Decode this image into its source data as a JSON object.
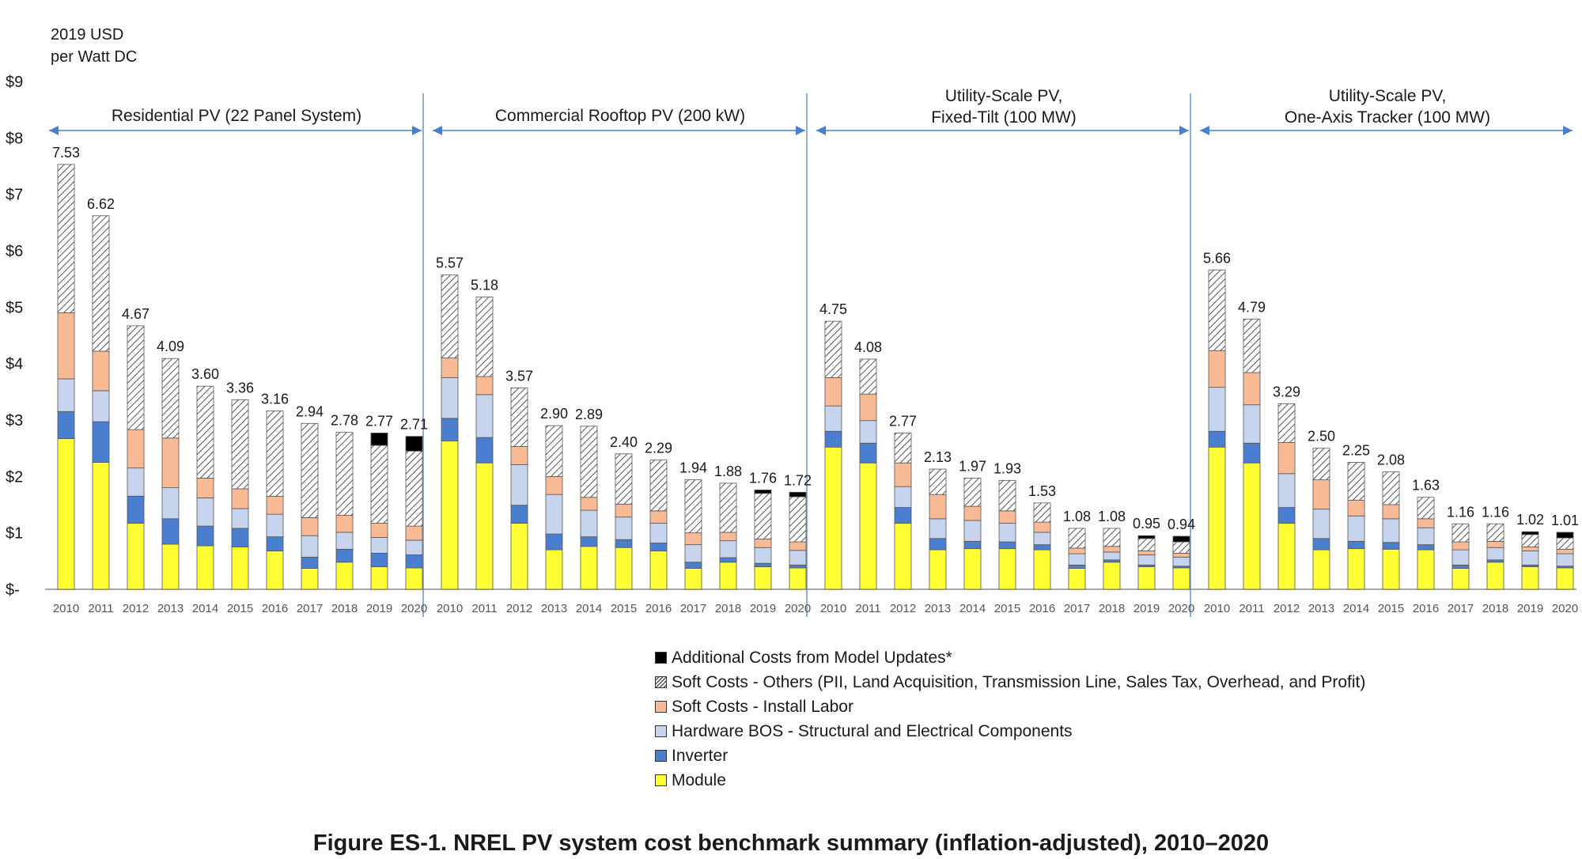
{
  "chart_data": {
    "type": "bar",
    "stacked": true,
    "y_unit_label": [
      "2019 USD",
      "per Watt DC"
    ],
    "ylim": [
      0,
      9
    ],
    "yticks": [
      {
        "value": 0,
        "label": "$-"
      },
      {
        "value": 1,
        "label": "$1"
      },
      {
        "value": 2,
        "label": "$2"
      },
      {
        "value": 3,
        "label": "$3"
      },
      {
        "value": 4,
        "label": "$4"
      },
      {
        "value": 5,
        "label": "$5"
      },
      {
        "value": 6,
        "label": "$6"
      },
      {
        "value": 7,
        "label": "$7"
      },
      {
        "value": 8,
        "label": "$8"
      },
      {
        "value": 9,
        "label": "$9"
      }
    ],
    "categories": [
      "2010",
      "2011",
      "2012",
      "2013",
      "2014",
      "2015",
      "2016",
      "2017",
      "2018",
      "2019",
      "2020"
    ],
    "legend": [
      {
        "key": "additional",
        "label": "Additional Costs from Model Updates*",
        "color": "#000000"
      },
      {
        "key": "soft_other",
        "label": "Soft Costs - Others (PII, Land Acquisition, Transmission Line, Sales Tax, Overhead, and Profit)",
        "color": "hatch"
      },
      {
        "key": "labor",
        "label": "Soft Costs - Install Labor",
        "color": "#f8b995"
      },
      {
        "key": "bos",
        "label": "Hardware BOS - Structural and Electrical Components",
        "color": "#c7d4ee"
      },
      {
        "key": "inverter",
        "label": "Inverter",
        "color": "#4a7fcf"
      },
      {
        "key": "module",
        "label": "Module",
        "color": "#ffff33"
      }
    ],
    "groups": [
      {
        "title": [
          "Residential PV (22 Panel System)"
        ],
        "totals": [
          "7.53",
          "6.62",
          "4.67",
          "4.09",
          "3.60",
          "3.36",
          "3.16",
          "2.94",
          "2.78",
          "2.77",
          "2.71"
        ],
        "series": {
          "module": [
            2.67,
            2.25,
            1.17,
            0.8,
            0.77,
            0.75,
            0.68,
            0.37,
            0.48,
            0.4,
            0.38
          ],
          "inverter": [
            0.48,
            0.72,
            0.48,
            0.45,
            0.35,
            0.33,
            0.25,
            0.2,
            0.23,
            0.24,
            0.23
          ],
          "bos": [
            0.58,
            0.55,
            0.5,
            0.55,
            0.5,
            0.35,
            0.4,
            0.38,
            0.3,
            0.28,
            0.26
          ],
          "labor": [
            1.17,
            0.7,
            0.68,
            0.88,
            0.35,
            0.35,
            0.32,
            0.32,
            0.3,
            0.25,
            0.25
          ],
          "soft_other": [
            2.63,
            2.4,
            1.84,
            1.41,
            1.63,
            1.58,
            1.51,
            1.67,
            1.47,
            1.38,
            1.33
          ],
          "additional": [
            0,
            0,
            0,
            0,
            0,
            0,
            0,
            0,
            0,
            0.22,
            0.26
          ]
        }
      },
      {
        "title": [
          "Commercial Rooftop PV (200 kW)"
        ],
        "totals": [
          "5.57",
          "5.18",
          "3.57",
          "2.90",
          "2.89",
          "2.40",
          "2.29",
          "1.94",
          "1.88",
          "1.76",
          "1.72"
        ],
        "series": {
          "module": [
            2.63,
            2.24,
            1.17,
            0.7,
            0.76,
            0.74,
            0.68,
            0.37,
            0.48,
            0.4,
            0.38
          ],
          "inverter": [
            0.4,
            0.45,
            0.32,
            0.28,
            0.17,
            0.14,
            0.14,
            0.11,
            0.08,
            0.06,
            0.05
          ],
          "bos": [
            0.72,
            0.76,
            0.72,
            0.7,
            0.47,
            0.4,
            0.35,
            0.31,
            0.3,
            0.28,
            0.26
          ],
          "labor": [
            0.35,
            0.32,
            0.32,
            0.32,
            0.23,
            0.23,
            0.22,
            0.21,
            0.15,
            0.15,
            0.15
          ],
          "soft_other": [
            1.47,
            1.41,
            1.04,
            0.9,
            1.26,
            0.89,
            0.9,
            0.94,
            0.87,
            0.81,
            0.8
          ],
          "additional": [
            0,
            0,
            0,
            0,
            0,
            0,
            0,
            0,
            0,
            0.06,
            0.08
          ]
        }
      },
      {
        "title": [
          "Utility-Scale PV,",
          "Fixed-Tilt (100 MW)"
        ],
        "totals": [
          "4.75",
          "4.08",
          "2.77",
          "2.13",
          "1.97",
          "1.93",
          "1.53",
          "1.08",
          "1.08",
          "0.95",
          "0.94"
        ],
        "series": {
          "module": [
            2.52,
            2.24,
            1.17,
            0.7,
            0.72,
            0.72,
            0.7,
            0.37,
            0.48,
            0.4,
            0.38
          ],
          "inverter": [
            0.28,
            0.35,
            0.28,
            0.2,
            0.13,
            0.12,
            0.09,
            0.06,
            0.04,
            0.03,
            0.03
          ],
          "bos": [
            0.45,
            0.4,
            0.37,
            0.35,
            0.37,
            0.33,
            0.22,
            0.2,
            0.14,
            0.18,
            0.16
          ],
          "labor": [
            0.5,
            0.47,
            0.42,
            0.43,
            0.25,
            0.22,
            0.18,
            0.1,
            0.1,
            0.07,
            0.07
          ],
          "soft_other": [
            1.0,
            0.62,
            0.53,
            0.45,
            0.5,
            0.54,
            0.34,
            0.35,
            0.32,
            0.22,
            0.2
          ],
          "additional": [
            0,
            0,
            0,
            0,
            0,
            0,
            0,
            0,
            0,
            0.05,
            0.1
          ]
        }
      },
      {
        "title": [
          "Utility-Scale PV,",
          "One-Axis Tracker (100 MW)"
        ],
        "totals": [
          "5.66",
          "4.79",
          "3.29",
          "2.50",
          "2.25",
          "2.08",
          "1.63",
          "1.16",
          "1.16",
          "1.02",
          "1.01"
        ],
        "series": {
          "module": [
            2.52,
            2.24,
            1.17,
            0.7,
            0.72,
            0.71,
            0.7,
            0.37,
            0.48,
            0.4,
            0.38
          ],
          "inverter": [
            0.28,
            0.35,
            0.28,
            0.2,
            0.13,
            0.12,
            0.09,
            0.06,
            0.04,
            0.03,
            0.03
          ],
          "bos": [
            0.78,
            0.68,
            0.6,
            0.52,
            0.45,
            0.42,
            0.3,
            0.27,
            0.22,
            0.25,
            0.22
          ],
          "labor": [
            0.65,
            0.57,
            0.55,
            0.52,
            0.28,
            0.25,
            0.16,
            0.14,
            0.11,
            0.07,
            0.08
          ],
          "soft_other": [
            1.43,
            0.95,
            0.69,
            0.56,
            0.67,
            0.58,
            0.38,
            0.32,
            0.31,
            0.22,
            0.2
          ],
          "additional": [
            0,
            0,
            0,
            0,
            0,
            0,
            0,
            0,
            0,
            0.05,
            0.1
          ]
        }
      }
    ],
    "caption": "Figure ES-1. NREL PV system cost benchmark summary (inflation-adjusted), 2010–2020"
  }
}
